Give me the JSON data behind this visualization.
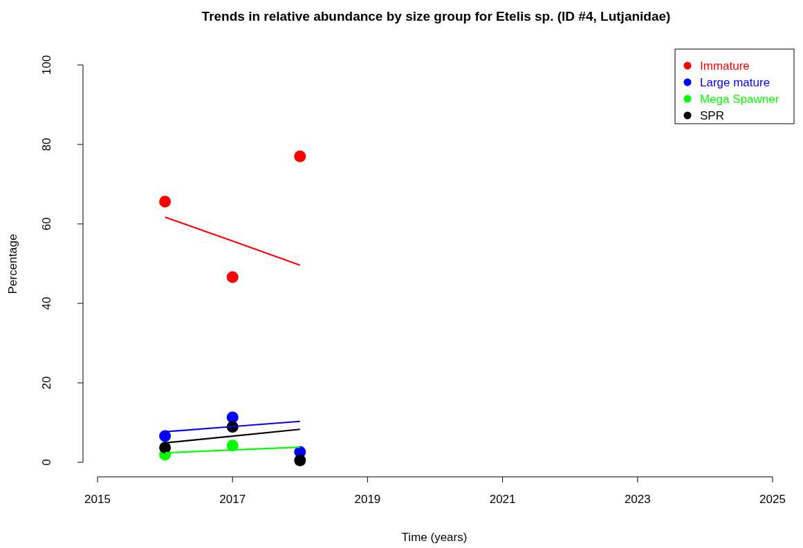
{
  "chart_data": {
    "type": "scatter",
    "title": "Trends in relative abundance by size group for Etelis sp. (ID #4, Lutjanidae)",
    "xlabel": "Time (years)",
    "ylabel": "Percentage",
    "x": [
      2016,
      2017,
      2018
    ],
    "series": [
      {
        "name": "Immature",
        "color": "#ff0000",
        "values": [
          65.6,
          46.6,
          77.0
        ]
      },
      {
        "name": "Large mature",
        "color": "#0000ff",
        "values": [
          6.6,
          11.3,
          2.6
        ]
      },
      {
        "name": "Mega Spawner",
        "color": "#00ff00",
        "values": [
          1.9,
          4.2,
          null
        ]
      },
      {
        "name": "SPR",
        "color": "#000000",
        "values": [
          3.7,
          8.9,
          0.5
        ]
      },
      {
        "type": "line",
        "marker": "none",
        "color": "#ff0000",
        "values": [
          61.7,
          55.7,
          49.6
        ]
      },
      {
        "type": "line",
        "marker": "none",
        "color": "#0000ff",
        "values": [
          7.7,
          9.0,
          10.3
        ]
      },
      {
        "type": "line",
        "marker": "none",
        "color": "#00ff00",
        "values": [
          2.4,
          3.1,
          3.8
        ]
      },
      {
        "type": "line",
        "marker": "none",
        "color": "#000000",
        "values": [
          4.9,
          6.6,
          8.3
        ]
      }
    ],
    "xlim": [
      2015,
      2025
    ],
    "xticks": [
      2015,
      2017,
      2019,
      2021,
      2023,
      2025
    ],
    "ylim": [
      0,
      100
    ],
    "yticks": [
      0,
      20,
      40,
      60,
      80,
      100
    ],
    "marker": "circle",
    "legend": "top right",
    "grid": false
  }
}
